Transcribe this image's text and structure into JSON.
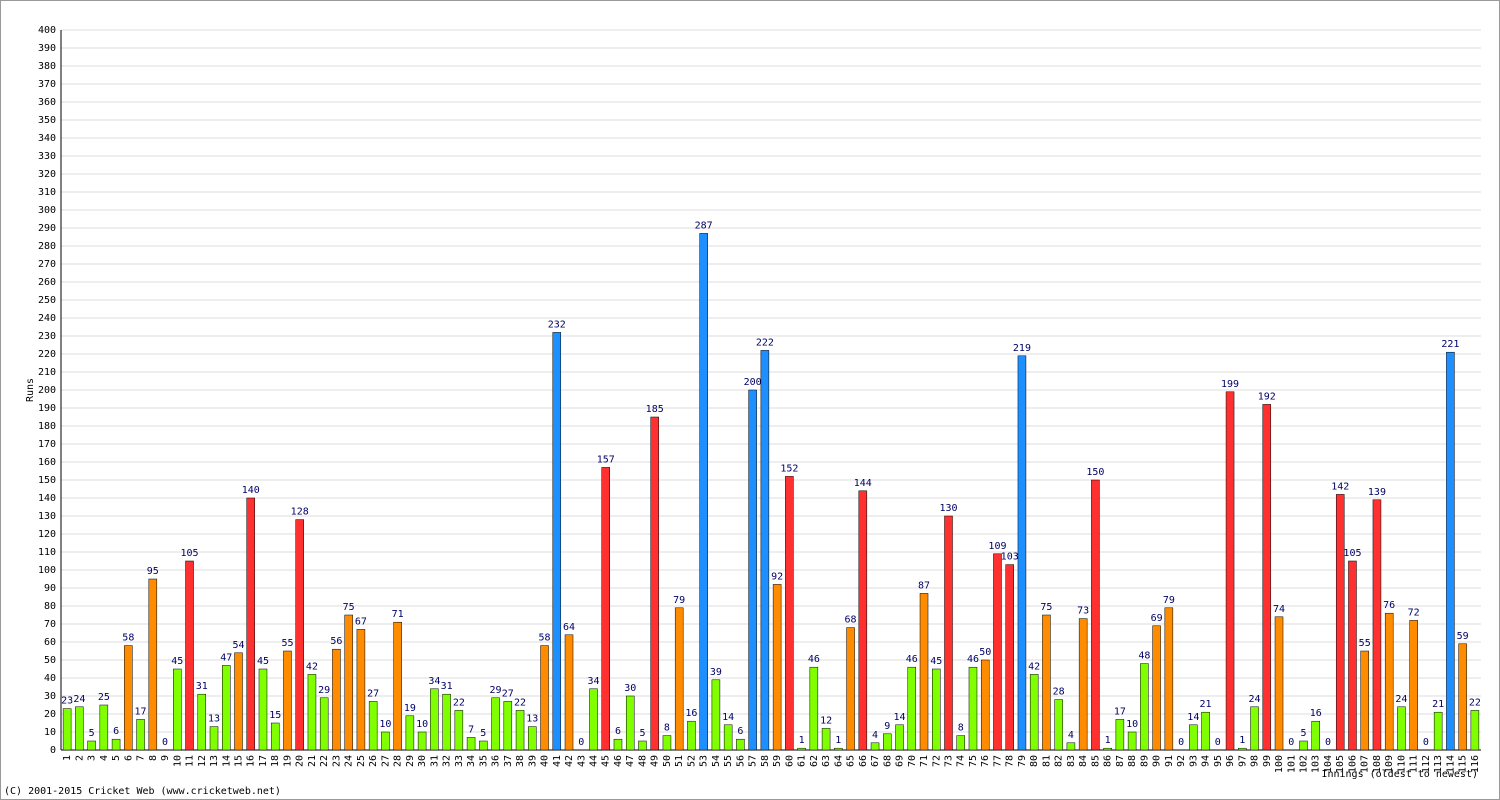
{
  "chart_data": {
    "type": "bar",
    "y_label": "Runs",
    "x_label": "Innings (oldest to newest)",
    "footer": "(C) 2001-2015 Cricket Web (www.cricketweb.net)",
    "categories": [
      1,
      2,
      3,
      4,
      5,
      6,
      7,
      8,
      9,
      10,
      11,
      12,
      13,
      14,
      15,
      16,
      17,
      18,
      19,
      20,
      21,
      22,
      23,
      24,
      25,
      26,
      27,
      28,
      29,
      30,
      31,
      32,
      33,
      34,
      35,
      36,
      37,
      38,
      39,
      40,
      41,
      42,
      43,
      44,
      45,
      46,
      47,
      48,
      49,
      50,
      51,
      52,
      53,
      54,
      55,
      56,
      57,
      58,
      59,
      60,
      61,
      62,
      63,
      64,
      65,
      66,
      67,
      68,
      69,
      70,
      71,
      72,
      73,
      74,
      75,
      76,
      77,
      78,
      79,
      80,
      81,
      82,
      83,
      84,
      85,
      86,
      87,
      88,
      89,
      90,
      91,
      92,
      93,
      94,
      95,
      96,
      97,
      98,
      99,
      100,
      101,
      102,
      103,
      104,
      105,
      106,
      107,
      108,
      109,
      110,
      111,
      112,
      113,
      114,
      115,
      116
    ],
    "values": [
      23,
      24,
      5,
      25,
      6,
      58,
      17,
      95,
      0,
      45,
      105,
      31,
      13,
      47,
      54,
      140,
      45,
      15,
      55,
      128,
      42,
      29,
      56,
      75,
      67,
      27,
      10,
      71,
      19,
      10,
      34,
      31,
      22,
      7,
      5,
      29,
      27,
      22,
      13,
      58,
      232,
      64,
      0,
      34,
      157,
      6,
      30,
      5,
      185,
      8,
      79,
      16,
      287,
      39,
      14,
      6,
      200,
      222,
      92,
      152,
      1,
      46,
      12,
      1,
      68,
      144,
      4,
      9,
      14,
      46,
      87,
      45,
      130,
      8,
      46,
      50,
      109,
      103,
      219,
      42,
      75,
      28,
      4,
      73,
      150,
      1,
      17,
      10,
      48,
      69,
      79,
      0,
      14,
      21,
      0,
      199,
      1,
      24,
      192,
      74,
      0,
      5,
      16,
      0,
      142,
      105,
      55,
      139,
      76,
      24,
      72,
      0,
      21,
      221,
      59,
      22
    ],
    "colors": [
      "#80ff00",
      "#80ff00",
      "#80ff00",
      "#80ff00",
      "#80ff00",
      "#ff8c00",
      "#80ff00",
      "#ff8c00",
      "#80ff00",
      "#80ff00",
      "#ff3030",
      "#80ff00",
      "#80ff00",
      "#80ff00",
      "#ff8c00",
      "#ff3030",
      "#80ff00",
      "#80ff00",
      "#ff8c00",
      "#ff3030",
      "#80ff00",
      "#80ff00",
      "#ff8c00",
      "#ff8c00",
      "#ff8c00",
      "#80ff00",
      "#80ff00",
      "#ff8c00",
      "#80ff00",
      "#80ff00",
      "#80ff00",
      "#80ff00",
      "#80ff00",
      "#80ff00",
      "#80ff00",
      "#80ff00",
      "#80ff00",
      "#80ff00",
      "#80ff00",
      "#ff8c00",
      "#1e8fff",
      "#ff8c00",
      "#80ff00",
      "#80ff00",
      "#ff3030",
      "#80ff00",
      "#80ff00",
      "#80ff00",
      "#ff3030",
      "#80ff00",
      "#ff8c00",
      "#80ff00",
      "#1e8fff",
      "#80ff00",
      "#80ff00",
      "#80ff00",
      "#1e8fff",
      "#1e8fff",
      "#ff8c00",
      "#ff3030",
      "#80ff00",
      "#80ff00",
      "#80ff00",
      "#80ff00",
      "#ff8c00",
      "#ff3030",
      "#80ff00",
      "#80ff00",
      "#80ff00",
      "#80ff00",
      "#ff8c00",
      "#80ff00",
      "#ff3030",
      "#80ff00",
      "#80ff00",
      "#ff8c00",
      "#ff3030",
      "#ff3030",
      "#1e8fff",
      "#80ff00",
      "#ff8c00",
      "#80ff00",
      "#80ff00",
      "#ff8c00",
      "#ff3030",
      "#80ff00",
      "#80ff00",
      "#80ff00",
      "#80ff00",
      "#ff8c00",
      "#ff8c00",
      "#80ff00",
      "#80ff00",
      "#80ff00",
      "#80ff00",
      "#ff3030",
      "#80ff00",
      "#80ff00",
      "#ff3030",
      "#ff8c00",
      "#80ff00",
      "#80ff00",
      "#80ff00",
      "#80ff00",
      "#ff3030",
      "#ff3030",
      "#ff8c00",
      "#ff3030",
      "#ff8c00",
      "#80ff00",
      "#ff8c00",
      "#80ff00",
      "#80ff00",
      "#1e8fff",
      "#ff8c00",
      "#80ff00"
    ],
    "ylim": [
      0,
      400
    ],
    "yticks": [
      0,
      10,
      20,
      30,
      40,
      50,
      60,
      70,
      80,
      90,
      100,
      110,
      120,
      130,
      140,
      150,
      160,
      170,
      180,
      190,
      200,
      210,
      220,
      230,
      240,
      250,
      260,
      270,
      280,
      290,
      300,
      310,
      320,
      330,
      340,
      350,
      360,
      370,
      380,
      390,
      400
    ],
    "grid": true
  }
}
